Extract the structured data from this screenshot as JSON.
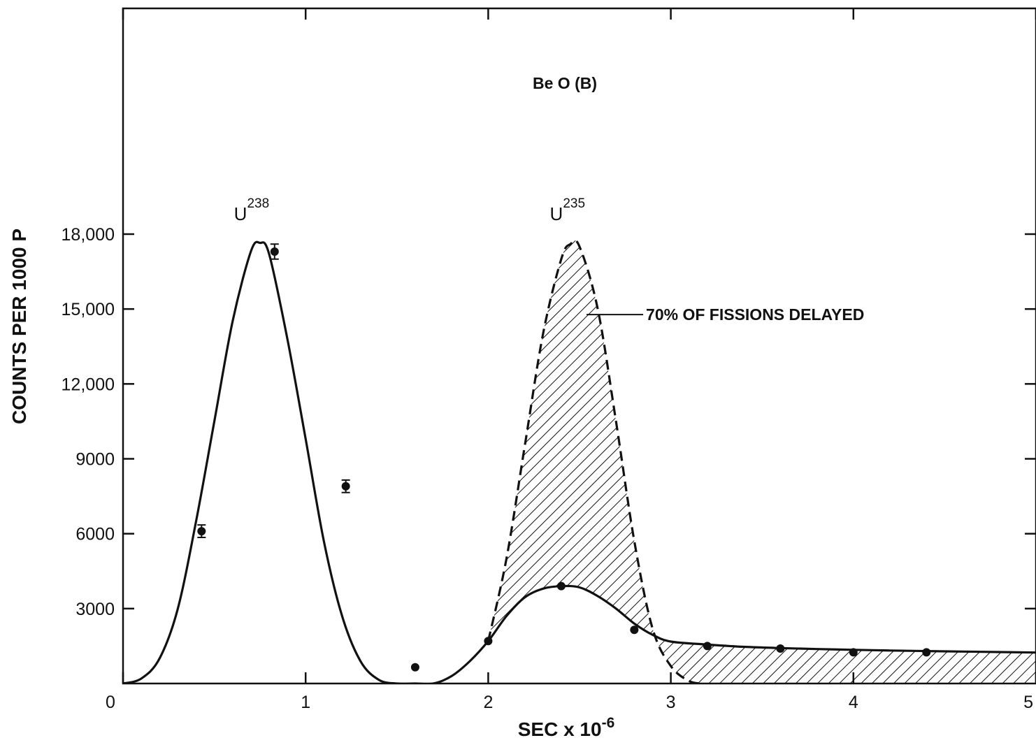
{
  "chart_data": {
    "type": "line",
    "title": "Be O (B)",
    "xlabel": "SEC x 10",
    "xlabel_exponent": "-6",
    "ylabel": "COUNTS PER 1000 P",
    "xlim": [
      0,
      5
    ],
    "ylim": [
      0,
      18000
    ],
    "x_ticks": [
      0,
      1,
      2,
      3,
      4,
      5
    ],
    "x_tick_labels": [
      "0",
      "1",
      "2",
      "3",
      "4",
      "5"
    ],
    "y_ticks": [
      3000,
      6000,
      9000,
      12000,
      15000,
      18000
    ],
    "y_tick_labels": [
      "3000",
      "6000",
      "9000",
      "12,000",
      "15,000",
      "18,000"
    ],
    "peak_labels": [
      {
        "base": "U",
        "sup": "238",
        "x": 0.75,
        "y": 18000
      },
      {
        "base": "U",
        "sup": "235",
        "x": 2.48,
        "y": 18000
      }
    ],
    "annotation": {
      "text": "70% OF FISSIONS DELAYED",
      "x": 2.55,
      "y": 15000
    },
    "series": [
      {
        "style": "solid",
        "x": [
          0,
          0.1,
          0.2,
          0.3,
          0.4,
          0.5,
          0.6,
          0.7,
          0.75,
          0.8,
          0.9,
          1.0,
          1.1,
          1.2,
          1.3,
          1.4,
          1.5,
          1.6,
          1.7,
          1.8,
          1.9,
          2.0,
          2.1,
          2.2,
          2.3,
          2.4,
          2.5,
          2.6,
          2.7,
          2.8,
          2.9,
          3.0,
          3.2,
          3.4,
          3.6,
          3.8,
          4.0,
          4.2,
          4.4,
          4.6,
          4.8,
          5.0
        ],
        "y": [
          0,
          200,
          1000,
          3000,
          6500,
          10500,
          14500,
          17300,
          17650,
          17200,
          13800,
          9800,
          5700,
          2700,
          900,
          150,
          0,
          0,
          0,
          300,
          900,
          1700,
          2700,
          3450,
          3800,
          3900,
          3850,
          3500,
          3000,
          2400,
          1950,
          1680,
          1560,
          1470,
          1420,
          1380,
          1350,
          1320,
          1300,
          1280,
          1260,
          1240
        ]
      },
      {
        "style": "dashed",
        "x": [
          2.0,
          2.1,
          2.2,
          2.3,
          2.4,
          2.45,
          2.5,
          2.6,
          2.7,
          2.8,
          2.9,
          3.0,
          3.1,
          3.17
        ],
        "y": [
          1700,
          5000,
          9500,
          14000,
          17000,
          17600,
          17500,
          15000,
          10500,
          5700,
          2200,
          700,
          100,
          0
        ]
      }
    ],
    "points": [
      {
        "x": 0.43,
        "y": 6100,
        "err": 250
      },
      {
        "x": 0.83,
        "y": 17300,
        "err": 300
      },
      {
        "x": 1.22,
        "y": 7900,
        "err": 250
      },
      {
        "x": 1.6,
        "y": 650
      },
      {
        "x": 2.0,
        "y": 1700
      },
      {
        "x": 2.4,
        "y": 3900
      },
      {
        "x": 2.8,
        "y": 2150
      },
      {
        "x": 3.2,
        "y": 1500
      },
      {
        "x": 3.6,
        "y": 1400
      },
      {
        "x": 4.0,
        "y": 1250
      },
      {
        "x": 4.4,
        "y": 1250
      }
    ],
    "hatched_regions": [
      "between dashed and solid curves from 2.0 to 5.0"
    ]
  }
}
